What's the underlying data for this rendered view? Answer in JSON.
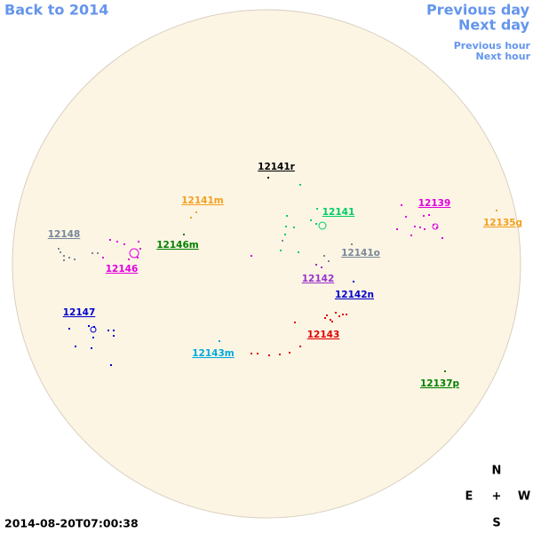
{
  "nav": {
    "back": "Back to 2014",
    "previous_day": "Previous day",
    "next_day": "Next day",
    "previous_hour": "Previous hour",
    "next_hour": "Next hour"
  },
  "regions": [
    {
      "label": "12141r",
      "color": "#000000"
    },
    {
      "label": "12141m",
      "color": "#f0a020"
    },
    {
      "label": "12141",
      "color": "#00cc66"
    },
    {
      "label": "12139",
      "color": "#e000e0"
    },
    {
      "label": "12135g",
      "color": "#f0a020"
    },
    {
      "label": "12148",
      "color": "#778899"
    },
    {
      "label": "12146m",
      "color": "#008000"
    },
    {
      "label": "12146",
      "color": "#e000e0"
    },
    {
      "label": "12141o",
      "color": "#778899"
    },
    {
      "label": "12142",
      "color": "#9932cc"
    },
    {
      "label": "12142n",
      "color": "#0000cc"
    },
    {
      "label": "12147",
      "color": "#0000cc"
    },
    {
      "label": "12143",
      "color": "#dd0000"
    },
    {
      "label": "12143m",
      "color": "#00aadd"
    },
    {
      "label": "12137p",
      "color": "#008000"
    }
  ],
  "compass": {
    "n": "N",
    "s": "S",
    "e": "E",
    "w": "W",
    "center": "+"
  },
  "timestamp": "2014-08-20T07:00:38"
}
